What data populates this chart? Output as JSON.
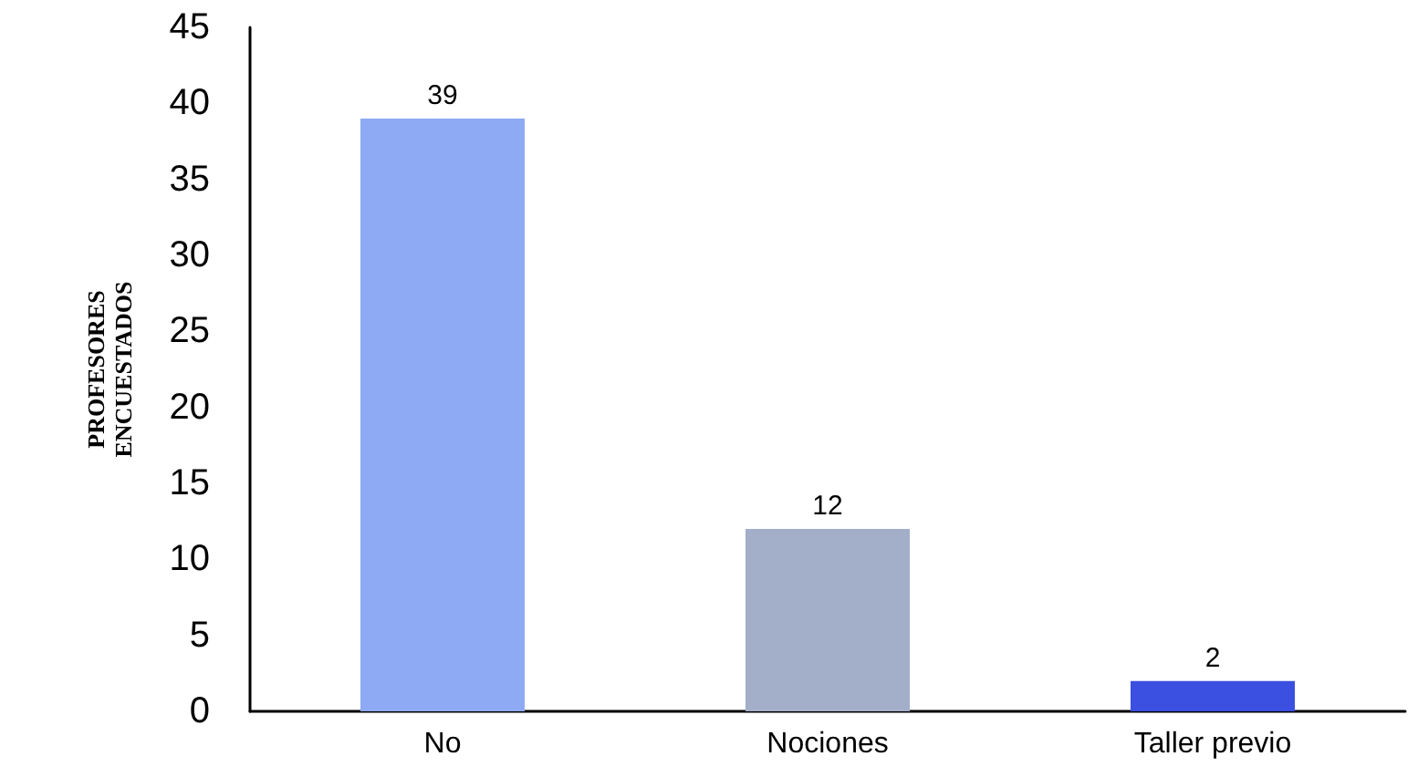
{
  "chart_data": {
    "type": "bar",
    "ylabel": "PROFESORES\nENCUESTADOS",
    "categories": [
      "No",
      "Nociones",
      "Taller previo"
    ],
    "values": [
      39,
      12,
      2
    ],
    "colors": [
      "#8eaaf4",
      "#a3aec9",
      "#3b4fe0"
    ],
    "ylim": [
      0,
      45
    ],
    "yticks": [
      0,
      5,
      10,
      15,
      20,
      25,
      30,
      35,
      40,
      45
    ],
    "data_labels": true,
    "grid": false
  }
}
